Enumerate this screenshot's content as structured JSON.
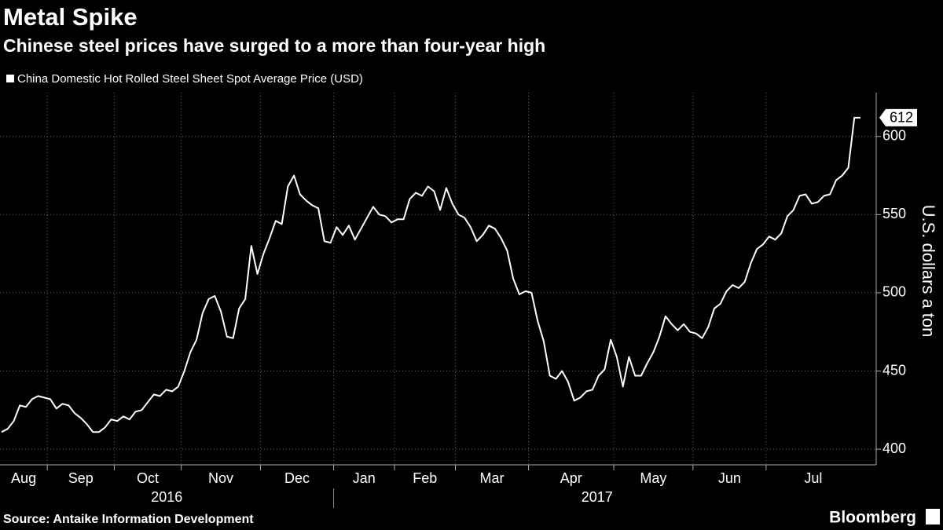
{
  "chart_data": {
    "type": "line",
    "title": "Metal Spike",
    "subtitle": "Chinese steel prices have surged to a more than four-year high",
    "series_name": "China Domestic Hot Rolled Steel Sheet Spot Average Price (USD)",
    "color": "#ffffff",
    "y_axis_label": "U.S. dollars a ton",
    "source": "Source: Antaike Information Development",
    "logo": "Bloomberg",
    "ylim": [
      390,
      628
    ],
    "yticks": [
      400,
      450,
      500,
      550,
      600
    ],
    "grid": true,
    "years": [
      {
        "label": "2016",
        "months": [
          {
            "label": "Aug",
            "values": [
              411,
              413,
              418,
              428,
              427,
              432,
              434,
              433
            ]
          },
          {
            "label": "Sep",
            "values": [
              432,
              426,
              429,
              428,
              423,
              420,
              416,
              411,
              411,
              414,
              419
            ]
          },
          {
            "label": "Oct",
            "values": [
              418,
              421,
              419,
              424,
              425,
              430,
              435,
              434,
              438,
              437,
              440
            ]
          },
          {
            "label": "Nov",
            "values": [
              450,
              462,
              470,
              487,
              496,
              498,
              488,
              472,
              471,
              490,
              496,
              530,
              512
            ]
          },
          {
            "label": "Dec",
            "values": [
              525,
              535,
              546,
              544,
              568,
              575,
              563,
              559,
              556,
              554,
              533,
              532
            ]
          }
        ]
      },
      {
        "label": "2017",
        "months": [
          {
            "label": "Jan",
            "values": [
              542,
              537,
              543,
              534,
              541,
              548,
              555,
              550,
              549,
              545
            ]
          },
          {
            "label": "Feb",
            "values": [
              547,
              547,
              560,
              564,
              562,
              568,
              565,
              553,
              567,
              557
            ]
          },
          {
            "label": "Mar",
            "values": [
              550,
              548,
              542,
              533,
              537,
              543,
              541,
              535,
              527,
              509,
              499,
              501
            ]
          },
          {
            "label": "Apr",
            "values": [
              500,
              482,
              469,
              447,
              445,
              450,
              443,
              431,
              433,
              437,
              438,
              447,
              451,
              470
            ]
          },
          {
            "label": "May",
            "values": [
              459,
              440,
              459,
              447,
              447,
              455,
              462,
              472,
              485,
              480,
              476,
              480,
              475
            ]
          },
          {
            "label": "Jun",
            "values": [
              474,
              471,
              478,
              490,
              493,
              501,
              505,
              503,
              507,
              519,
              528,
              531
            ]
          },
          {
            "label": "Jul",
            "values": [
              536,
              534,
              538,
              549,
              553,
              562,
              563,
              557,
              558,
              562,
              563,
              572,
              575,
              580,
              612,
              612
            ]
          }
        ]
      }
    ]
  }
}
